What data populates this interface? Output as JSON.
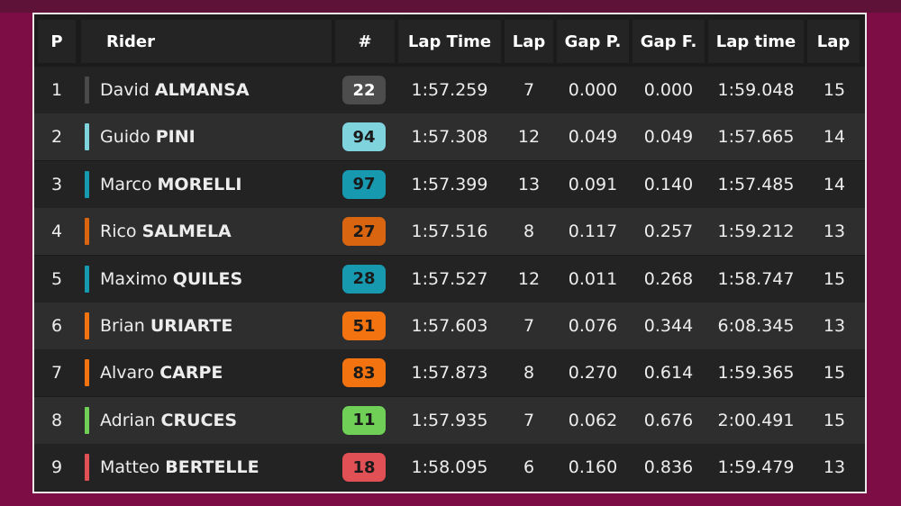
{
  "headers": {
    "pos": "P",
    "rider": "Rider",
    "number": "#",
    "lap_time": "Lap Time",
    "lap": "Lap",
    "gap_prev": "Gap P.",
    "gap_first": "Gap F.",
    "lap_time_2": "Lap time",
    "lap_2": "Lap"
  },
  "rows": [
    {
      "pos": "1",
      "first": "David",
      "last": "ALMANSA",
      "number": "22",
      "team_color": "#4a4a4a",
      "badge_bg": "#4d4d4d",
      "badge_fg": "#ffffff",
      "lap_time": "1:57.259",
      "lap": "7",
      "gap_prev": "0.000",
      "gap_first": "0.000",
      "lap_time_2": "1:59.048",
      "lap_2": "15"
    },
    {
      "pos": "2",
      "first": "Guido",
      "last": "PINI",
      "number": "94",
      "team_color": "#7fd3dd",
      "badge_bg": "#7fd3dd",
      "badge_fg": "#1a1a1a",
      "lap_time": "1:57.308",
      "lap": "12",
      "gap_prev": "0.049",
      "gap_first": "0.049",
      "lap_time_2": "1:57.665",
      "lap_2": "14"
    },
    {
      "pos": "3",
      "first": "Marco",
      "last": "MORELLI",
      "number": "97",
      "team_color": "#1799b0",
      "badge_bg": "#1799b0",
      "badge_fg": "#1a1a1a",
      "lap_time": "1:57.399",
      "lap": "13",
      "gap_prev": "0.091",
      "gap_first": "0.140",
      "lap_time_2": "1:57.485",
      "lap_2": "14"
    },
    {
      "pos": "4",
      "first": "Rico",
      "last": "SALMELA",
      "number": "27",
      "team_color": "#d96510",
      "badge_bg": "#d96510",
      "badge_fg": "#1a1a1a",
      "lap_time": "1:57.516",
      "lap": "8",
      "gap_prev": "0.117",
      "gap_first": "0.257",
      "lap_time_2": "1:59.212",
      "lap_2": "13"
    },
    {
      "pos": "5",
      "first": "Maximo",
      "last": "QUILES",
      "number": "28",
      "team_color": "#1799b0",
      "badge_bg": "#1799b0",
      "badge_fg": "#1a1a1a",
      "lap_time": "1:57.527",
      "lap": "12",
      "gap_prev": "0.011",
      "gap_first": "0.268",
      "lap_time_2": "1:58.747",
      "lap_2": "15"
    },
    {
      "pos": "6",
      "first": "Brian",
      "last": "URIARTE",
      "number": "51",
      "team_color": "#f2730f",
      "badge_bg": "#f2730f",
      "badge_fg": "#1a1a1a",
      "lap_time": "1:57.603",
      "lap": "7",
      "gap_prev": "0.076",
      "gap_first": "0.344",
      "lap_time_2": "6:08.345",
      "lap_2": "13"
    },
    {
      "pos": "7",
      "first": "Alvaro",
      "last": "CARPE",
      "number": "83",
      "team_color": "#f2730f",
      "badge_bg": "#f2730f",
      "badge_fg": "#1a1a1a",
      "lap_time": "1:57.873",
      "lap": "8",
      "gap_prev": "0.270",
      "gap_first": "0.614",
      "lap_time_2": "1:59.365",
      "lap_2": "15"
    },
    {
      "pos": "8",
      "first": "Adrian",
      "last": "CRUCES",
      "number": "11",
      "team_color": "#6fcf57",
      "badge_bg": "#6fcf57",
      "badge_fg": "#1a1a1a",
      "lap_time": "1:57.935",
      "lap": "7",
      "gap_prev": "0.062",
      "gap_first": "0.676",
      "lap_time_2": "2:00.491",
      "lap_2": "15"
    },
    {
      "pos": "9",
      "first": "Matteo",
      "last": "BERTELLE",
      "number": "18",
      "team_color": "#e05055",
      "badge_bg": "#e05055",
      "badge_fg": "#1a1a1a",
      "lap_time": "1:58.095",
      "lap": "6",
      "gap_prev": "0.160",
      "gap_first": "0.836",
      "lap_time_2": "1:59.479",
      "lap_2": "13"
    }
  ]
}
